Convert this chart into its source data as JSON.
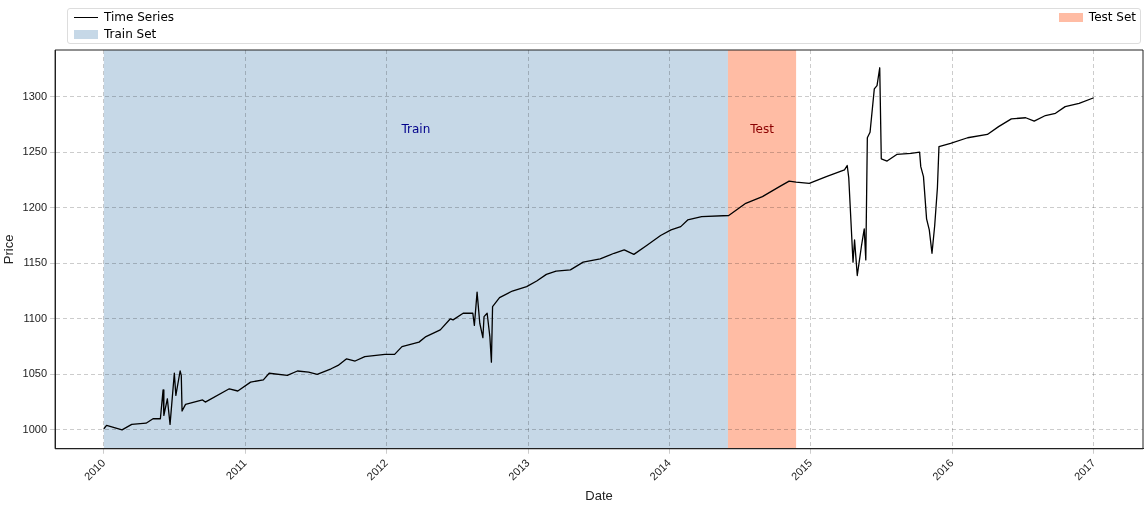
{
  "chart_data": {
    "type": "line",
    "xlabel": "Date",
    "ylabel": "Price",
    "xlim": [
      "2009-08-28",
      "2017-05-08"
    ],
    "ylim": [
      983,
      1342
    ],
    "xticks": [
      "2010",
      "2011",
      "2012",
      "2013",
      "2014",
      "2015",
      "2016",
      "2017"
    ],
    "yticks": [
      1000,
      1050,
      1100,
      1150,
      1200,
      1250,
      1300
    ],
    "grid": true,
    "legend": "top",
    "marker": "none",
    "line_style": "solid",
    "bands": [
      {
        "axis": "x",
        "from": "2010-01-01",
        "to": "2014-06-01",
        "label": "Train Set",
        "color": "#c6d8e7"
      },
      {
        "axis": "x",
        "from": "2014-06-01",
        "to": "2014-11-24",
        "label": "Test Set",
        "color": "#ffbca4"
      }
    ],
    "annotations": [
      "Train",
      "Test"
    ],
    "series": [
      {
        "name": "Time Series",
        "color": "#000000",
        "x": [
          "2010-01-01",
          "2010-01-08",
          "2010-02-17",
          "2010-03-14",
          "2010-04-20",
          "2010-05-08",
          "2010-05-27",
          "2010-06-03",
          "2010-06-05",
          "2010-06-14",
          "2010-06-21",
          "2010-07-02",
          "2010-07-06",
          "2010-07-17",
          "2010-07-20",
          "2010-07-22",
          "2010-07-31",
          "2010-09-13",
          "2010-09-20",
          "2010-11-21",
          "2010-12-13",
          "2011-01-15",
          "2011-02-17",
          "2011-03-04",
          "2011-04-20",
          "2011-05-16",
          "2011-06-14",
          "2011-07-06",
          "2011-08-11",
          "2011-08-29",
          "2011-09-20",
          "2011-10-12",
          "2011-11-06",
          "2011-12-28",
          "2012-01-22",
          "2012-02-10",
          "2012-03-25",
          "2012-04-12",
          "2012-05-19",
          "2012-06-14",
          "2012-06-21",
          "2012-07-17",
          "2012-08-11",
          "2012-08-15",
          "2012-08-22",
          "2012-08-29",
          "2012-09-06",
          "2012-09-09",
          "2012-09-17",
          "2012-09-24",
          "2012-09-28",
          "2012-10-01",
          "2012-10-19",
          "2012-11-21",
          "2012-12-28",
          "2013-01-23",
          "2013-02-17",
          "2013-03-14",
          "2013-04-20",
          "2013-05-23",
          "2013-07-06",
          "2013-08-11",
          "2013-09-06",
          "2013-10-01",
          "2013-11-03",
          "2013-12-09",
          "2014-01-05",
          "2014-01-30",
          "2014-02-17",
          "2014-03-25",
          "2014-06-03",
          "2014-07-17",
          "2014-08-29",
          "2014-10-12",
          "2014-11-06",
          "2014-11-24",
          "2014-12-28",
          "2015-02-10",
          "2015-03-29",
          "2015-04-05",
          "2015-04-09",
          "2015-04-20",
          "2015-04-24",
          "2015-05-01",
          "2015-05-12",
          "2015-05-19",
          "2015-05-23",
          "2015-05-27",
          "2015-06-03",
          "2015-06-14",
          "2015-06-21",
          "2015-06-28",
          "2015-07-02",
          "2015-07-17",
          "2015-08-11",
          "2015-09-17",
          "2015-10-09",
          "2015-10-12",
          "2015-10-19",
          "2015-10-27",
          "2015-11-03",
          "2015-11-10",
          "2015-11-17",
          "2015-11-24",
          "2015-11-28",
          "2015-12-28",
          "2016-02-10",
          "2016-04-01",
          "2016-04-30",
          "2016-06-02",
          "2016-07-09",
          "2016-07-31",
          "2016-08-29",
          "2016-09-24",
          "2016-10-19",
          "2016-11-24",
          "2017-01-01"
        ],
        "values": [
          1001,
          1004,
          1000,
          1005,
          1006,
          1010,
          1010,
          1036,
          1013,
          1028,
          1005,
          1051,
          1031,
          1053,
          1049,
          1017,
          1023,
          1027,
          1025,
          1037,
          1035,
          1043,
          1045,
          1051,
          1049,
          1053,
          1052,
          1050,
          1055,
          1058,
          1064,
          1062,
          1066,
          1068,
          1068,
          1075,
          1079,
          1084,
          1090,
          1100,
          1099,
          1105,
          1105,
          1094,
          1124,
          1096,
          1083,
          1102,
          1105,
          1084,
          1061,
          1111,
          1119,
          1125,
          1129,
          1134,
          1140,
          1143,
          1144,
          1151,
          1154,
          1159,
          1162,
          1158,
          1166,
          1175,
          1180,
          1183,
          1189,
          1192,
          1193,
          1204,
          1210,
          1219,
          1224,
          1223,
          1222,
          1228,
          1234,
          1238,
          1227,
          1151,
          1171,
          1139,
          1166,
          1181,
          1153,
          1263,
          1268,
          1307,
          1310,
          1326,
          1244,
          1242,
          1248,
          1249,
          1250,
          1237,
          1228,
          1190,
          1180,
          1159,
          1184,
          1218,
          1255,
          1258,
          1263,
          1266,
          1273,
          1280,
          1281,
          1278,
          1283,
          1285,
          1291,
          1294,
          1299
        ]
      }
    ]
  }
}
